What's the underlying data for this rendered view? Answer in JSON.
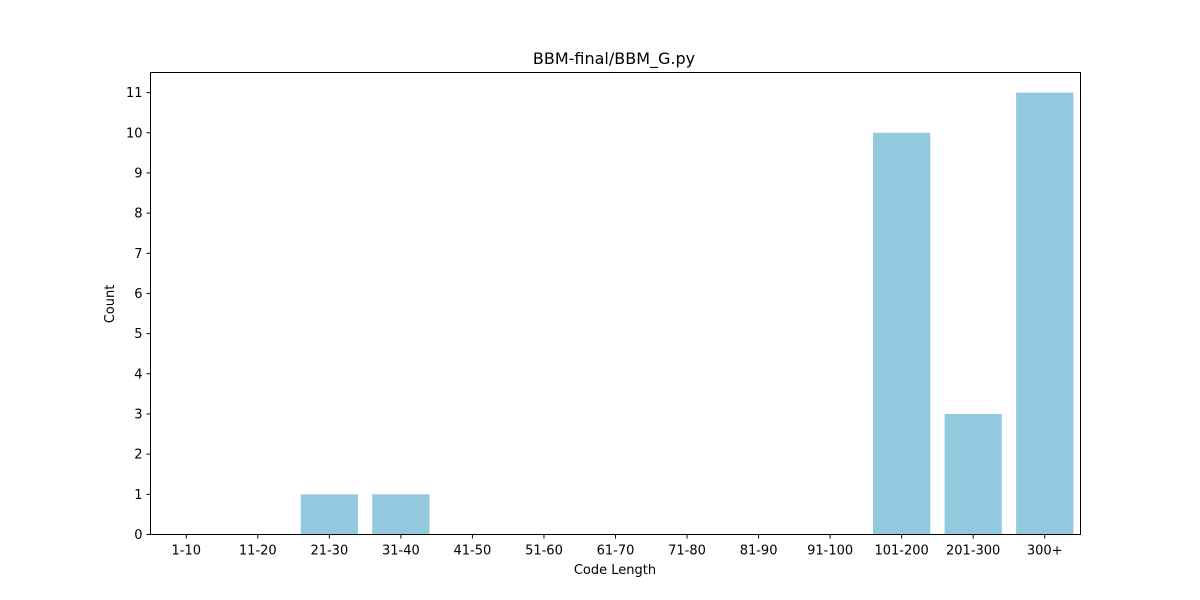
{
  "chart_data": {
    "type": "bar",
    "title": "BBM-final/BBM_G.py",
    "xlabel": "Code Length",
    "ylabel": "Count",
    "categories": [
      "1-10",
      "11-20",
      "21-30",
      "31-40",
      "41-50",
      "51-60",
      "61-70",
      "71-80",
      "81-90",
      "91-100",
      "101-200",
      "201-300",
      "300+"
    ],
    "values": [
      0,
      0,
      1,
      1,
      0,
      0,
      0,
      0,
      0,
      0,
      10,
      3,
      11
    ],
    "ylim": [
      0,
      11.5
    ],
    "yticks": [
      0,
      1,
      2,
      3,
      4,
      5,
      6,
      7,
      8,
      9,
      10,
      11
    ],
    "grid": false,
    "legend": "none",
    "bar_color": "#92c9df"
  }
}
